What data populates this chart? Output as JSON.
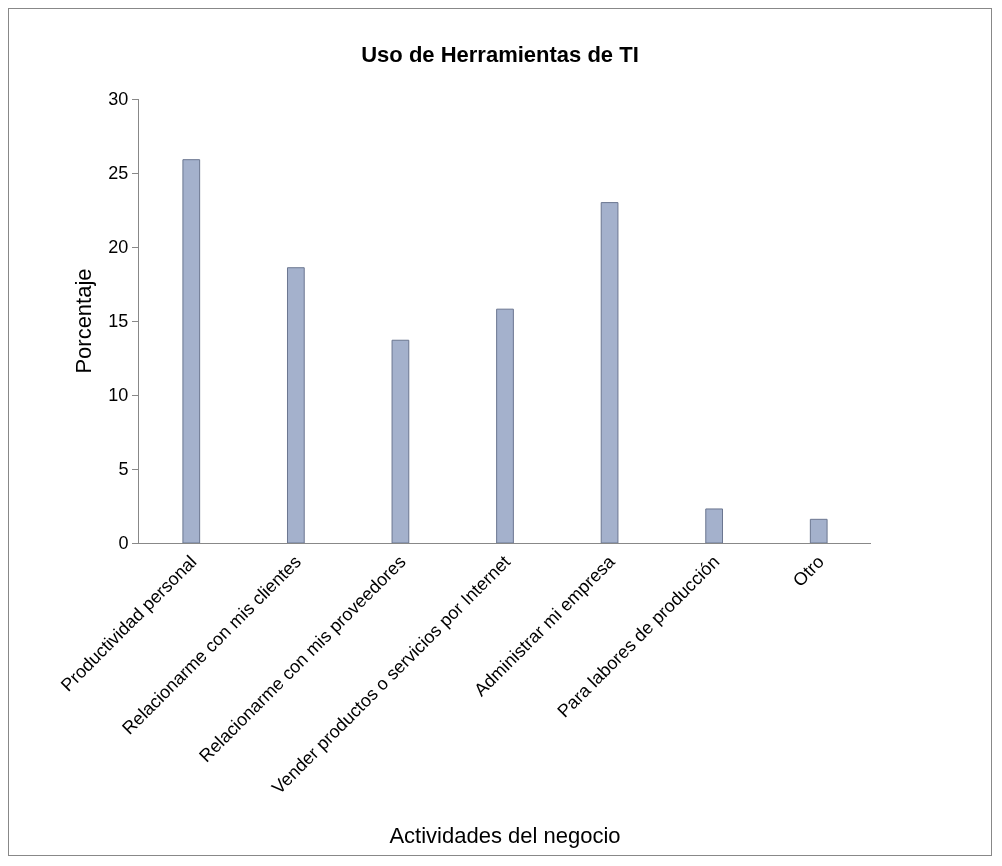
{
  "chart_data": {
    "type": "bar",
    "title": "Uso de Herramientas de TI",
    "xlabel": "Actividades del negocio",
    "ylabel": "Porcentaje",
    "categories": [
      "Productividad personal",
      "Relacionarme con mis clientes",
      "Relacionarme con mis proveedores",
      "Vender productos o servicios por Internet",
      "Administrar mi empresa",
      "Para labores de producción",
      "Otro"
    ],
    "values": [
      25.9,
      18.6,
      13.7,
      15.8,
      23.0,
      2.3,
      1.6
    ],
    "color": "#a4b1cc",
    "ylim": [
      0,
      30
    ],
    "yticks": [
      0,
      5,
      10,
      15,
      20,
      25,
      30
    ],
    "grid": false
  }
}
